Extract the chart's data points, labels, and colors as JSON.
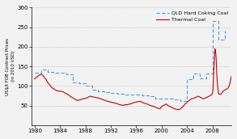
{
  "ylabel": "US$/t FOB Contract Prices\n(in 2010 USD)",
  "ylim": [
    0,
    300
  ],
  "yticks": [
    50,
    100,
    150,
    200,
    250,
    300
  ],
  "xlim": [
    1979.5,
    2011
  ],
  "xticks": [
    1980,
    1984,
    1988,
    1992,
    1996,
    2000,
    2004,
    2008
  ],
  "coking_color": "#5B9BD5",
  "thermal_color": "#C00000",
  "legend_labels": [
    "QLD Hard Coking Coal",
    "Thermal Coal"
  ],
  "background_color": "#F2F2F2",
  "coking_coal": {
    "years": [
      1980,
      1981,
      1982,
      1983,
      1984,
      1985,
      1986,
      1987,
      1988,
      1989,
      1990,
      1991,
      1992,
      1993,
      1994,
      1995,
      1996,
      1997,
      1998,
      1999,
      2000,
      2001,
      2002,
      2003,
      2004,
      2005,
      2006,
      2007,
      2008,
      2009,
      2010
    ],
    "values": [
      133,
      143,
      136,
      133,
      133,
      130,
      110,
      106,
      100,
      90,
      87,
      85,
      83,
      81,
      79,
      78,
      78,
      76,
      73,
      68,
      68,
      67,
      65,
      62,
      118,
      132,
      120,
      132,
      265,
      218,
      242
    ]
  },
  "thermal_coal": {
    "years": [
      1980.0,
      1980.25,
      1980.5,
      1980.75,
      1981.0,
      1981.25,
      1981.5,
      1981.75,
      1982.0,
      1982.25,
      1982.5,
      1982.75,
      1983.0,
      1983.25,
      1983.5,
      1983.75,
      1984.0,
      1984.25,
      1984.5,
      1984.75,
      1985.0,
      1985.25,
      1985.5,
      1985.75,
      1986.0,
      1986.25,
      1986.5,
      1986.75,
      1987.0,
      1987.25,
      1987.5,
      1987.75,
      1988.0,
      1988.25,
      1988.5,
      1988.75,
      1989.0,
      1989.25,
      1989.5,
      1989.75,
      1990.0,
      1990.25,
      1990.5,
      1990.75,
      1991.0,
      1991.25,
      1991.5,
      1991.75,
      1992.0,
      1992.25,
      1992.5,
      1992.75,
      1993.0,
      1993.25,
      1993.5,
      1993.75,
      1994.0,
      1994.25,
      1994.5,
      1994.75,
      1995.0,
      1995.25,
      1995.5,
      1995.75,
      1996.0,
      1996.25,
      1996.5,
      1996.75,
      1997.0,
      1997.25,
      1997.5,
      1997.75,
      1998.0,
      1998.25,
      1998.5,
      1998.75,
      1999.0,
      1999.25,
      1999.5,
      1999.75,
      2000.0,
      2000.25,
      2000.5,
      2000.75,
      2001.0,
      2001.25,
      2001.5,
      2001.75,
      2002.0,
      2002.25,
      2002.5,
      2002.75,
      2003.0,
      2003.25,
      2003.5,
      2003.75,
      2004.0,
      2004.25,
      2004.5,
      2004.75,
      2005.0,
      2005.25,
      2005.5,
      2005.75,
      2006.0,
      2006.25,
      2006.5,
      2006.75,
      2007.0,
      2007.25,
      2007.5,
      2007.75,
      2008.0,
      2008.1,
      2008.2,
      2008.3,
      2008.4,
      2008.5,
      2008.6,
      2008.7,
      2008.8,
      2008.9,
      2009.0,
      2009.25,
      2009.5,
      2009.75,
      2010.0,
      2010.25,
      2010.5,
      2010.75,
      2011.0
    ],
    "values": [
      118,
      122,
      125,
      128,
      130,
      128,
      122,
      118,
      110,
      105,
      100,
      95,
      93,
      90,
      88,
      87,
      87,
      86,
      85,
      82,
      80,
      78,
      75,
      72,
      70,
      67,
      65,
      63,
      64,
      65,
      67,
      68,
      68,
      70,
      72,
      74,
      73,
      72,
      71,
      70,
      70,
      68,
      67,
      65,
      64,
      62,
      61,
      60,
      59,
      58,
      57,
      56,
      55,
      53,
      52,
      51,
      51,
      52,
      52,
      53,
      54,
      55,
      57,
      58,
      59,
      60,
      61,
      60,
      58,
      56,
      55,
      54,
      52,
      50,
      49,
      48,
      46,
      44,
      43,
      42,
      48,
      50,
      52,
      54,
      50,
      48,
      46,
      44,
      42,
      41,
      40,
      40,
      42,
      46,
      50,
      55,
      58,
      62,
      65,
      68,
      68,
      70,
      72,
      74,
      72,
      70,
      68,
      68,
      70,
      72,
      74,
      76,
      80,
      90,
      130,
      160,
      195,
      190,
      170,
      130,
      105,
      90,
      80,
      78,
      82,
      88,
      90,
      92,
      95,
      105,
      125
    ]
  }
}
